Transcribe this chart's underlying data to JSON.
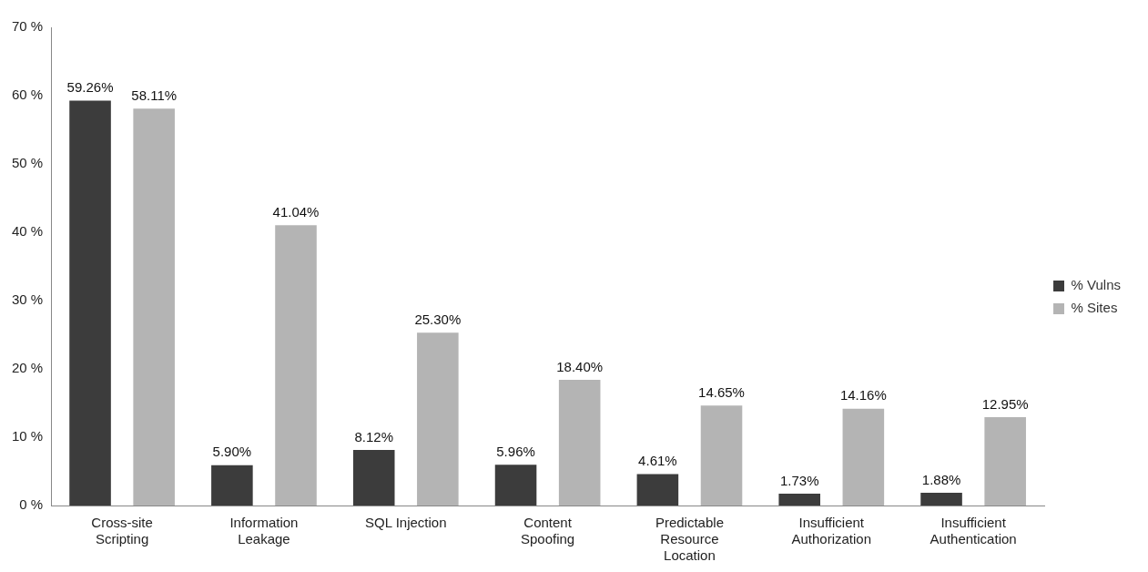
{
  "chart_data": {
    "type": "bar",
    "categories": [
      "Cross-site Scripting",
      "Information Leakage",
      "SQL Injection",
      "Content Spoofing",
      "Predictable Resource Location",
      "Insufficient Authorization",
      "Insufficient Authentication"
    ],
    "series": [
      {
        "name": "% Vulns",
        "color": "#3c3c3c",
        "values": [
          59.26,
          5.9,
          8.12,
          5.96,
          4.61,
          1.73,
          1.88
        ],
        "value_labels": [
          "59.26%",
          "5.90%",
          "8.12%",
          "5.96%",
          "4.61%",
          "1.73%",
          "1.88%"
        ]
      },
      {
        "name": "% Sites",
        "color": "#b4b4b4",
        "values": [
          58.11,
          41.04,
          25.3,
          18.4,
          14.65,
          14.16,
          12.95
        ],
        "value_labels": [
          "58.11%",
          "41.04%",
          "25.30%",
          "18.40%",
          "14.65%",
          "14.16%",
          "12.95%"
        ]
      }
    ],
    "ylim": [
      0,
      70
    ],
    "yticks": [
      {
        "value": 0,
        "label": "0 %"
      },
      {
        "value": 10,
        "label": "10 %"
      },
      {
        "value": 20,
        "label": "20 %"
      },
      {
        "value": 30,
        "label": "30 %"
      },
      {
        "value": 40,
        "label": "40 %"
      },
      {
        "value": 50,
        "label": "50 %"
      },
      {
        "value": 60,
        "label": "60 %"
      },
      {
        "value": 70,
        "label": "70 %"
      }
    ],
    "grid": false,
    "legend": "right"
  }
}
